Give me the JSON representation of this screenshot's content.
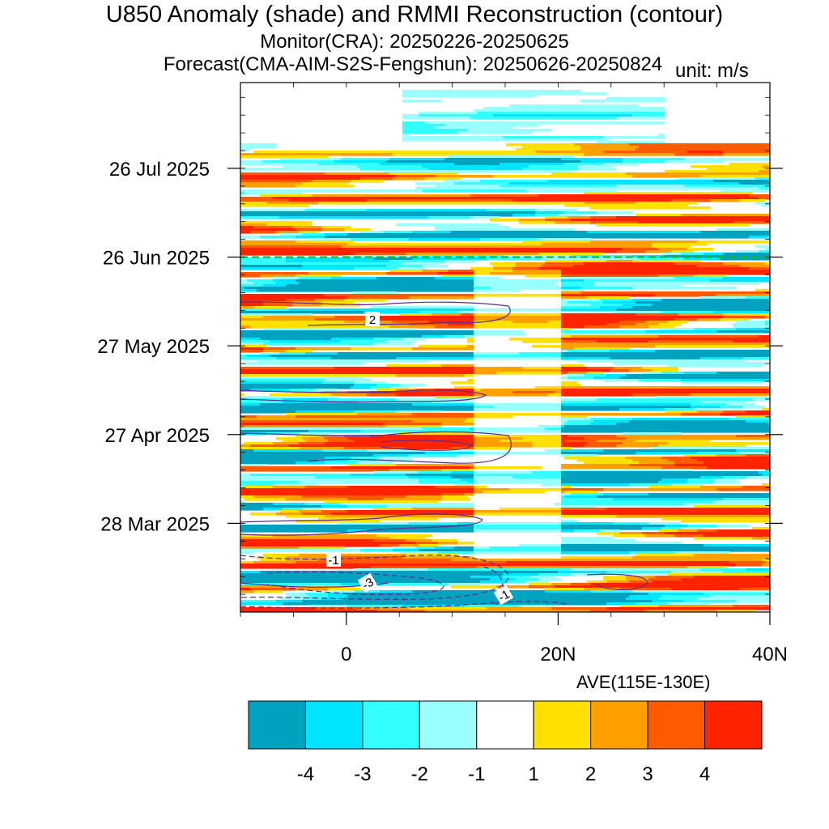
{
  "chart_data": {
    "type": "heatmap",
    "title": "U850 Anomaly (shade) and RMMI Reconstruction (contour)",
    "subtitle_monitor": "Monitor(CRA): 20250226-20250625",
    "subtitle_forecast": "Forecast(CMA-AIM-S2S-Fengshun): 20250626-20250824",
    "unit": "unit: m/s",
    "xlabel": "AVE(115E-130E)",
    "x_range": [
      -10,
      40
    ],
    "x_ticks": [
      {
        "value": 0,
        "label": "0"
      },
      {
        "value": 20,
        "label": "20N"
      },
      {
        "value": 40,
        "label": "40N"
      }
    ],
    "y_range": [
      "2025-02-26",
      "2025-08-24"
    ],
    "y_ticks": [
      {
        "date": "2025-03-28",
        "label": "28 Mar 2025"
      },
      {
        "date": "2025-04-27",
        "label": "27 Apr 2025"
      },
      {
        "date": "2025-05-27",
        "label": "27 May 2025"
      },
      {
        "date": "2025-06-26",
        "label": "26 Jun 2025"
      },
      {
        "date": "2025-07-26",
        "label": "26 Jul 2025"
      }
    ],
    "forecast_start_date": "2025-06-26",
    "colorbar": {
      "levels": [
        "-4",
        "-3",
        "-2",
        "-1",
        "1",
        "2",
        "3",
        "4"
      ],
      "colors": [
        "#00a2bf",
        "#00e5ff",
        "#33ffff",
        "#99ffff",
        "#ffffff",
        "#ffe000",
        "#ffa000",
        "#ff5a00",
        "#ff2300"
      ]
    },
    "contour_labels": [
      "2",
      "-1",
      "-3",
      "-1"
    ],
    "contour_color": "#5b2c8f",
    "forecast_line_color": "#1fb51f"
  }
}
